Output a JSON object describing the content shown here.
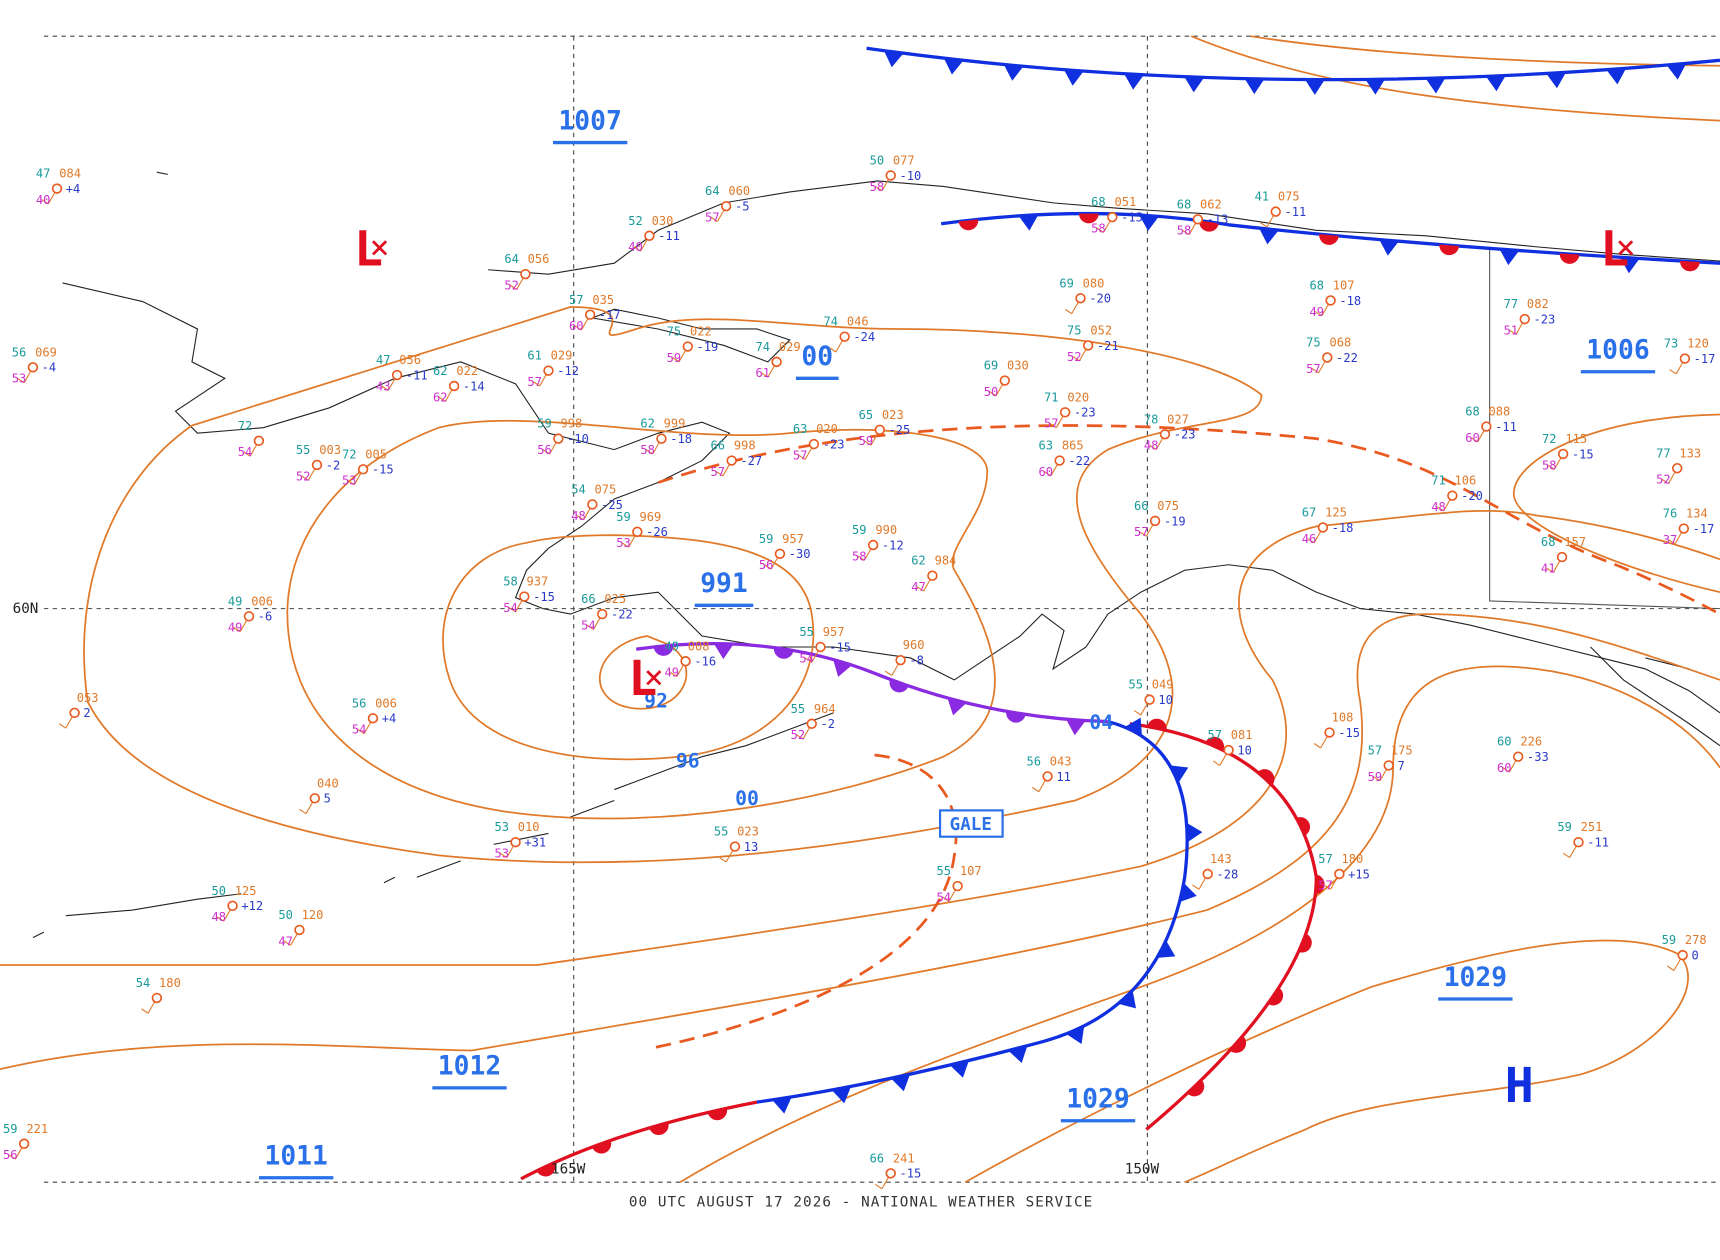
{
  "footer": "00 UTC AUGUST 17 2026 - NATIONAL WEATHER SERVICE",
  "grid_labels": [
    "60N",
    "165W",
    "150W"
  ],
  "pressure_labels": [
    "1007",
    "00",
    "1006",
    "991",
    "04",
    "96",
    "00",
    "92",
    "1012",
    "1029",
    "1029",
    "1011"
  ],
  "centers": [
    "L",
    "L",
    "L",
    "H"
  ],
  "warnings": [
    "GALE"
  ],
  "stations": [
    {
      "temp": "47",
      "pressure": "084",
      "dewpoint": "40",
      "change": "+4"
    },
    {
      "temp": "56",
      "pressure": "069",
      "dewpoint": "53",
      "change": "-4"
    },
    {
      "temp": "52",
      "pressure": "030",
      "dewpoint": "40",
      "change": "-11"
    },
    {
      "temp": "64",
      "pressure": "060",
      "dewpoint": "57",
      "change": "-5"
    },
    {
      "temp": "50",
      "pressure": "077",
      "dewpoint": "58",
      "change": "-10"
    },
    {
      "temp": "64",
      "pressure": "056",
      "dewpoint": "52"
    },
    {
      "temp": "57",
      "pressure": "035",
      "dewpoint": "60",
      "change": "-17"
    },
    {
      "temp": "47",
      "pressure": "056",
      "dewpoint": "43",
      "change": "-11"
    },
    {
      "temp": "62",
      "pressure": "022",
      "dewpoint": "62",
      "change": "-14"
    },
    {
      "temp": "61",
      "pressure": "029",
      "dewpoint": "57",
      "change": "-12"
    },
    {
      "temp": "75",
      "pressure": "022",
      "dewpoint": "59",
      "change": "-19"
    },
    {
      "temp": "74",
      "pressure": "029",
      "dewpoint": "61"
    },
    {
      "temp": "74",
      "pressure": "046",
      "change": "-24"
    },
    {
      "temp": "72",
      "dewpoint": "54"
    },
    {
      "temp": "55",
      "pressure": "003",
      "dewpoint": "52",
      "change": "-2"
    },
    {
      "temp": "72",
      "pressure": "005",
      "dewpoint": "53",
      "change": "-15"
    },
    {
      "temp": "59",
      "pressure": "998",
      "dewpoint": "56",
      "change": "-10"
    },
    {
      "temp": "62",
      "pressure": "999",
      "dewpoint": "58",
      "change": "-18"
    },
    {
      "temp": "66",
      "pressure": "998",
      "dewpoint": "57",
      "change": "-27"
    },
    {
      "temp": "63",
      "pressure": "020",
      "dewpoint": "57",
      "change": "-23"
    },
    {
      "temp": "65",
      "pressure": "023",
      "dewpoint": "59",
      "change": "-25"
    },
    {
      "temp": "54",
      "pressure": "075",
      "dewpoint": "48",
      "change": "-25"
    },
    {
      "temp": "59",
      "pressure": "969",
      "dewpoint": "53",
      "change": "-26"
    },
    {
      "temp": "59",
      "pressure": "957",
      "dewpoint": "56",
      "change": "-30"
    },
    {
      "temp": "59",
      "pressure": "990",
      "dewpoint": "58",
      "change": "-12"
    },
    {
      "temp": "62",
      "pressure": "984",
      "dewpoint": "47"
    },
    {
      "temp": "58",
      "pressure": "937",
      "dewpoint": "54",
      "change": "-15"
    },
    {
      "temp": "49",
      "pressure": "006",
      "dewpoint": "49",
      "change": "-6"
    },
    {
      "temp": "66",
      "pressure": "025",
      "dewpoint": "54",
      "change": "-22"
    },
    {
      "temp": "49",
      "pressure": "008",
      "dewpoint": "49",
      "change": "-16"
    },
    {
      "temp": "55",
      "pressure": "957",
      "dewpoint": "54",
      "change": "-15"
    },
    {
      "pressure": "960",
      "change": "-8"
    },
    {
      "pressure": "053",
      "change": "2"
    },
    {
      "temp": "56",
      "pressure": "006",
      "dewpoint": "54",
      "change": "+4"
    },
    {
      "temp": "55",
      "pressure": "964",
      "dewpoint": "52",
      "change": "-2"
    },
    {
      "pressure": "040",
      "change": "5"
    },
    {
      "temp": "53",
      "pressure": "010",
      "dewpoint": "53",
      "change": "+31"
    },
    {
      "temp": "55",
      "pressure": "023",
      "change": "13"
    },
    {
      "temp": "50",
      "pressure": "125",
      "dewpoint": "48",
      "change": "+12"
    },
    {
      "temp": "50",
      "pressure": "120",
      "dewpoint": "47"
    },
    {
      "temp": "54",
      "pressure": "180"
    },
    {
      "temp": "59",
      "pressure": "221",
      "dewpoint": "56"
    },
    {
      "temp": "66",
      "pressure": "241",
      "change": "-15"
    },
    {
      "temp": "55",
      "pressure": "107",
      "dewpoint": "54"
    },
    {
      "temp": "56",
      "pressure": "043",
      "change": "11"
    },
    {
      "temp": "55",
      "pressure": "049",
      "change": "10"
    },
    {
      "temp": "57",
      "pressure": "081",
      "change": "10"
    },
    {
      "pressure": "108",
      "change": "-15"
    },
    {
      "temp": "57",
      "pressure": "175",
      "dewpoint": "59",
      "change": "7"
    },
    {
      "pressure": "143",
      "change": "-28"
    },
    {
      "temp": "57",
      "pressure": "180",
      "dewpoint": "57",
      "change": "+15"
    },
    {
      "temp": "60",
      "pressure": "226",
      "dewpoint": "60",
      "change": "-33"
    },
    {
      "temp": "59",
      "pressure": "251",
      "change": "-11"
    },
    {
      "temp": "59",
      "pressure": "278",
      "change": "0"
    },
    {
      "temp": "69",
      "pressure": "080",
      "change": "-20"
    },
    {
      "temp": "75",
      "pressure": "052",
      "dewpoint": "52",
      "change": "-21"
    },
    {
      "temp": "68",
      "pressure": "107",
      "dewpoint": "49",
      "change": "-18"
    },
    {
      "temp": "75",
      "pressure": "068",
      "dewpoint": "57",
      "change": "-22"
    },
    {
      "temp": "77",
      "pressure": "082",
      "dewpoint": "51",
      "change": "-23"
    },
    {
      "temp": "69",
      "pressure": "030",
      "dewpoint": "50"
    },
    {
      "temp": "71",
      "pressure": "020",
      "dewpoint": "57",
      "change": "-23"
    },
    {
      "temp": "63",
      "pressure": "865",
      "dewpoint": "60",
      "change": "-22"
    },
    {
      "temp": "78",
      "pressure": "027",
      "dewpoint": "48",
      "change": "-23"
    },
    {
      "temp": "68",
      "pressure": "088",
      "dewpoint": "60",
      "change": "-11"
    },
    {
      "temp": "72",
      "pressure": "115",
      "dewpoint": "58",
      "change": "-15"
    },
    {
      "temp": "71",
      "pressure": "106",
      "dewpoint": "48",
      "change": "-20"
    },
    {
      "temp": "77",
      "pressure": "133",
      "dewpoint": "52"
    },
    {
      "temp": "76",
      "pressure": "134",
      "dewpoint": "37",
      "change": "-17"
    },
    {
      "temp": "68",
      "pressure": "157",
      "dewpoint": "41"
    },
    {
      "temp": "73",
      "pressure": "120",
      "change": "-17"
    },
    {
      "temp": "67",
      "pressure": "125",
      "dewpoint": "46",
      "change": "-18"
    },
    {
      "temp": "66",
      "pressure": "075",
      "dewpoint": "57",
      "change": "-19"
    },
    {
      "temp": "41",
      "pressure": "075",
      "change": "-11"
    },
    {
      "temp": "68",
      "pressure": "051",
      "dewpoint": "58",
      "change": "-15"
    },
    {
      "temp": "68",
      "pressure": "062",
      "dewpoint": "58",
      "change": "-13"
    }
  ]
}
